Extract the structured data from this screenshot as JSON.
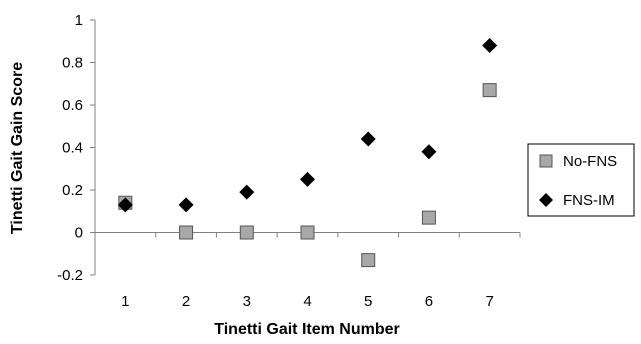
{
  "chart_data": {
    "type": "scatter",
    "title": "",
    "xlabel": "Tinetti Gait Item Number",
    "ylabel": "Tinetti Gait Gain Score",
    "x": [
      1,
      2,
      3,
      4,
      5,
      6,
      7
    ],
    "x_ticks": [
      "1",
      "2",
      "3",
      "4",
      "5",
      "6",
      "7"
    ],
    "xlim": [
      0.5,
      7.5
    ],
    "ylim": [
      -0.2,
      1
    ],
    "y_ticks": [
      "-0.2",
      "0",
      "0.2",
      "0.4",
      "0.6",
      "0.8",
      "1"
    ],
    "grid": false,
    "legend_position": "right",
    "series": [
      {
        "name": "No-FNS",
        "marker": "square",
        "color": "#a8a8a8",
        "values": [
          0.14,
          0.0,
          0.0,
          0.0,
          -0.13,
          0.07,
          0.67
        ]
      },
      {
        "name": "FNS-IM",
        "marker": "diamond",
        "color": "#000000",
        "values": [
          0.13,
          0.13,
          0.19,
          0.25,
          0.44,
          0.38,
          0.88
        ]
      }
    ]
  }
}
